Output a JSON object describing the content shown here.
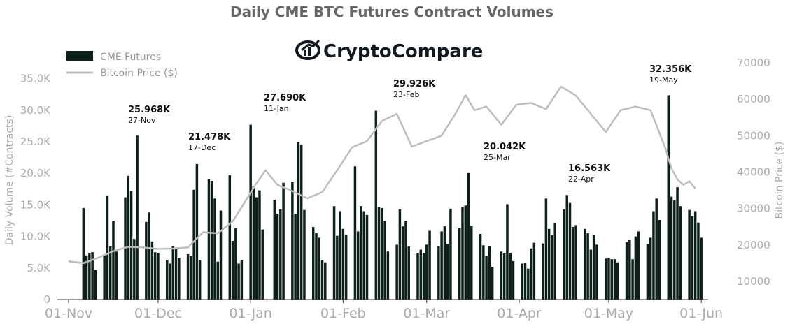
{
  "chart_data": {
    "type": "bar",
    "title": "Daily CME BTC Futures Contract Volumes",
    "logo_text": "CryptoCompare",
    "ylabel": "Daily Volume (#Contracts)",
    "y2label": "Bitcoin Price ($)",
    "ylim": [
      0,
      37500
    ],
    "y2lim": [
      5000,
      70000
    ],
    "yticks": [
      "0",
      "5.0K",
      "10.0K",
      "15.0K",
      "20.0K",
      "25.0K",
      "30.0K",
      "35.0K"
    ],
    "y2ticks": [
      "10000",
      "20000",
      "30000",
      "40000",
      "50000",
      "60000",
      "70000"
    ],
    "xticks": [
      "01-Nov",
      "01-Dec",
      "01-Jan",
      "01-Feb",
      "01-Mar",
      "01-Apr",
      "01-May",
      "01-Jun"
    ],
    "legend": {
      "position": "top-left",
      "entries": [
        "CME Futures",
        "Bitcoin Price ($)"
      ]
    },
    "colors": {
      "bars": "#0d1f1a",
      "price": "#bdbdbd"
    },
    "series": [
      {
        "name": "CME Futures",
        "type": "bar",
        "x": [
          5,
          6,
          7,
          8,
          9,
          12,
          13,
          14,
          15,
          16,
          19,
          20,
          21,
          22,
          23,
          26,
          27,
          28,
          29,
          30,
          33,
          34,
          35,
          36,
          37,
          40,
          41,
          42,
          43,
          44,
          47,
          48,
          49,
          50,
          51,
          54,
          55,
          56,
          57,
          58,
          61,
          62,
          63,
          64,
          65,
          69,
          70,
          71,
          72,
          75,
          76,
          77,
          78,
          79,
          82,
          83,
          84,
          85,
          86,
          89,
          90,
          91,
          92,
          93,
          96,
          97,
          98,
          99,
          100,
          103,
          104,
          105,
          106,
          107,
          110,
          111,
          112,
          113,
          114,
          117,
          118,
          119,
          120,
          121,
          124,
          125,
          126,
          127,
          128,
          131,
          132,
          133,
          134,
          135,
          138,
          139,
          140,
          141,
          142,
          145,
          146,
          147,
          148,
          149,
          152,
          153,
          154,
          155,
          156,
          159,
          160,
          161,
          162,
          163,
          166,
          167,
          168,
          169,
          170,
          173,
          174,
          175,
          176,
          177,
          180,
          181,
          182,
          183,
          184,
          187,
          188,
          189,
          190,
          191,
          194,
          195,
          196,
          197,
          198,
          201,
          202,
          203,
          204,
          205,
          208,
          209,
          210,
          211,
          212
        ],
        "values": [
          14500,
          7000,
          7300,
          7500,
          4700,
          7100,
          16500,
          8400,
          12500,
          7600,
          16200,
          19600,
          17200,
          9600,
          25968,
          12300,
          13800,
          9200,
          7500,
          7400,
          6300,
          5700,
          8400,
          8100,
          6600,
          7200,
          6900,
          17400,
          21478,
          6300,
          19100,
          18800,
          16000,
          6000,
          14100,
          19700,
          9300,
          11300,
          5700,
          6200,
          27690,
          18000,
          16200,
          17300,
          11100,
          15800,
          13500,
          14300,
          18500,
          18600,
          13600,
          24900,
          24500,
          14200,
          11500,
          10500,
          9800,
          6300,
          5900,
          14800,
          10100,
          14000,
          11200,
          10300,
          21100,
          10800,
          14800,
          14000,
          13400,
          29926,
          14700,
          14500,
          12400,
          7600,
          8700,
          14300,
          11600,
          12400,
          8400,
          7400,
          7900,
          7400,
          8700,
          10900,
          8400,
          10800,
          11600,
          8800,
          14400,
          11300,
          14700,
          14900,
          20042,
          11600,
          10400,
          8600,
          6900,
          8500,
          5200,
          7600,
          7300,
          15100,
          7400,
          6100,
          5700,
          5800,
          4900,
          8100,
          9000,
          8900,
          16000,
          11200,
          10200,
          12100,
          14300,
          16563,
          15300,
          11500,
          11800,
          11200,
          10500,
          7900,
          10200,
          8700,
          6500,
          6600,
          6400,
          6400,
          5900,
          9100,
          9500,
          6400,
          10000,
          10800,
          8800,
          9800,
          14000,
          16000,
          12600,
          32356,
          16300,
          15700,
          17800,
          14800,
          14200,
          13200,
          14000,
          12200,
          9800
        ]
      },
      {
        "name": "Bitcoin Price ($)",
        "type": "line",
        "axis": "secondary",
        "x": [
          0,
          5,
          10,
          15,
          20,
          25,
          30,
          35,
          40,
          45,
          50,
          55,
          60,
          63,
          66,
          70,
          75,
          80,
          85,
          90,
          95,
          100,
          105,
          110,
          115,
          120,
          125,
          130,
          133,
          136,
          140,
          145,
          150,
          155,
          160,
          165,
          170,
          175,
          180,
          185,
          190,
          195,
          200,
          202,
          204,
          206,
          208,
          210
        ],
        "values": [
          15500,
          15000,
          16500,
          18300,
          19500,
          19300,
          18900,
          19000,
          19300,
          23500,
          23200,
          26500,
          33000,
          37000,
          40500,
          36500,
          34800,
          32800,
          34500,
          40500,
          46800,
          48500,
          54000,
          56000,
          47000,
          48500,
          50000,
          56500,
          61200,
          57000,
          58000,
          53000,
          58500,
          59000,
          57300,
          63500,
          61000,
          56000,
          51000,
          57000,
          58000,
          57000,
          46500,
          41000,
          38000,
          36500,
          37500,
          35500
        ]
      }
    ],
    "annotations": [
      {
        "value": "25.968K",
        "date": "27-Nov"
      },
      {
        "value": "21.478K",
        "date": "17-Dec"
      },
      {
        "value": "27.690K",
        "date": "11-Jan"
      },
      {
        "value": "29.926K",
        "date": "23-Feb"
      },
      {
        "value": "20.042K",
        "date": "25-Mar"
      },
      {
        "value": "16.563K",
        "date": "22-Apr"
      },
      {
        "value": "32.356K",
        "date": "19-May"
      }
    ]
  }
}
